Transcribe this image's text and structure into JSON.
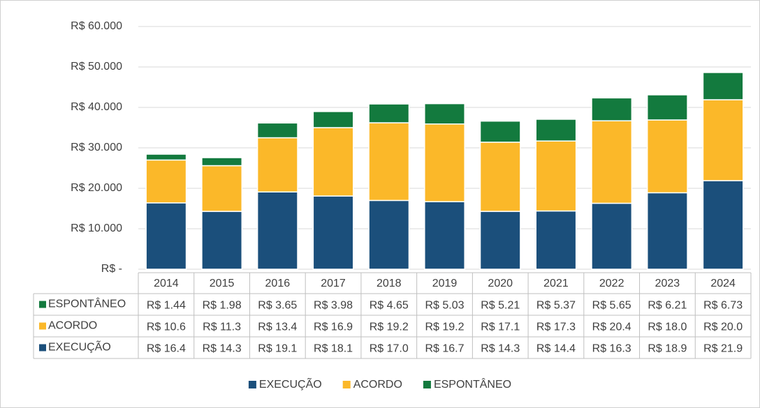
{
  "chart_data": {
    "type": "stacked_bar",
    "categories": [
      "2014",
      "2015",
      "2016",
      "2017",
      "2018",
      "2019",
      "2020",
      "2021",
      "2022",
      "2023",
      "2024"
    ],
    "series": [
      {
        "name": "EXECUÇÃO",
        "color": "#1b4f7b",
        "values": [
          16400,
          14300,
          19100,
          18100,
          17000,
          16700,
          14300,
          14400,
          16300,
          18900,
          21900
        ],
        "value_labels": [
          "R$ 16.4",
          "R$ 14.3",
          "R$ 19.1",
          "R$ 18.1",
          "R$ 17.0",
          "R$ 16.7",
          "R$ 14.3",
          "R$ 14.4",
          "R$ 16.3",
          "R$ 18.9",
          "R$ 21.9"
        ]
      },
      {
        "name": "ACORDO",
        "color": "#fbb829",
        "values": [
          10600,
          11300,
          13400,
          16900,
          19200,
          19200,
          17100,
          17300,
          20400,
          18000,
          20000
        ],
        "value_labels": [
          "R$ 10.6",
          "R$ 11.3",
          "R$ 13.4",
          "R$ 16.9",
          "R$ 19.2",
          "R$ 19.2",
          "R$ 17.1",
          "R$ 17.3",
          "R$ 20.4",
          "R$ 18.0",
          "R$ 20.0"
        ]
      },
      {
        "name": "ESPONTÂNEO",
        "color": "#137a3e",
        "values": [
          1440,
          1980,
          3650,
          3980,
          4650,
          5030,
          5210,
          5370,
          5650,
          6210,
          6730
        ],
        "value_labels": [
          "R$ 1.44",
          "R$ 1.98",
          "R$ 3.65",
          "R$ 3.98",
          "R$ 4.65",
          "R$ 5.03",
          "R$ 5.21",
          "R$ 5.37",
          "R$ 5.65",
          "R$ 6.21",
          "R$ 6.73"
        ]
      }
    ],
    "ylim": [
      0,
      60000
    ],
    "yticks": [
      {
        "value": 0,
        "label": "R$ -"
      },
      {
        "value": 10000,
        "label": "R$ 10.000"
      },
      {
        "value": 20000,
        "label": "R$ 20.000"
      },
      {
        "value": 30000,
        "label": "R$ 30.000"
      },
      {
        "value": 40000,
        "label": "R$ 40.000"
      },
      {
        "value": 50000,
        "label": "R$ 50.000"
      },
      {
        "value": 60000,
        "label": "R$ 60.000"
      }
    ],
    "grid": true,
    "legend": "bottom"
  }
}
